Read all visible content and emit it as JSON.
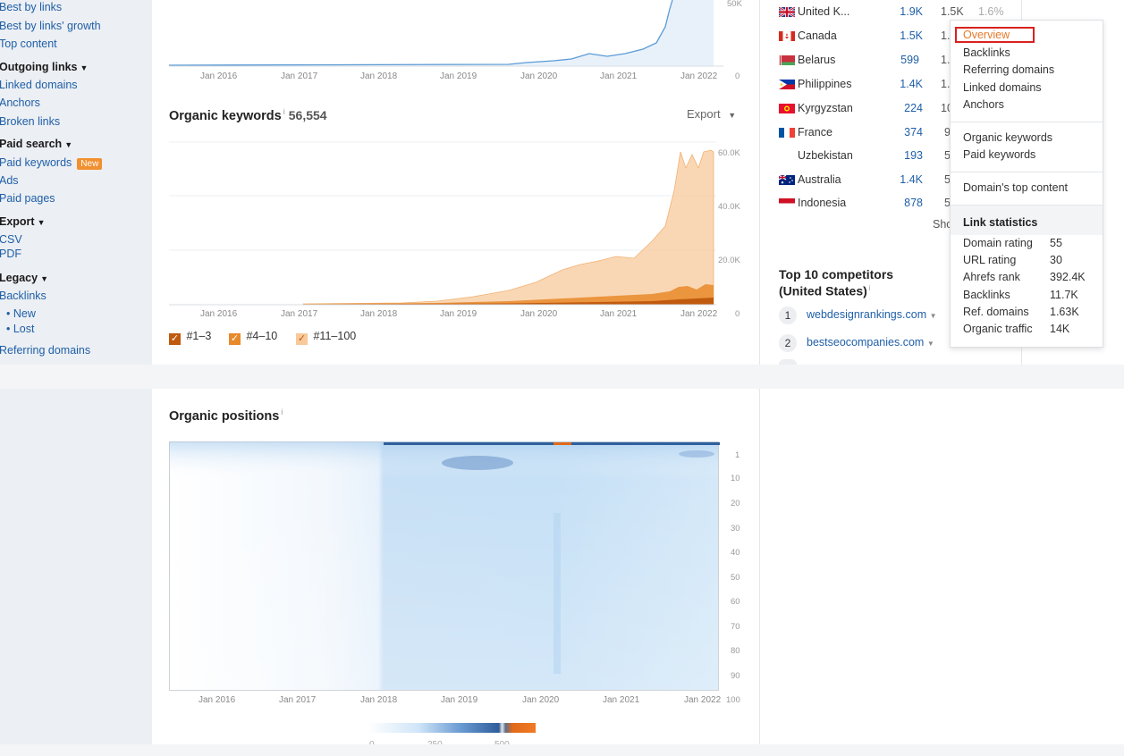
{
  "sidebar": {
    "top_links": [
      "Best by links",
      "Best by links' growth",
      "Top content"
    ],
    "outgoing_header": "Outgoing links",
    "outgoing_links": [
      "Linked domains",
      "Anchors",
      "Broken links"
    ],
    "paid_header": "Paid search",
    "paid_keywords": "Paid keywords",
    "new_badge": "New",
    "paid_links": [
      "Ads",
      "Paid pages"
    ],
    "export_header": "Export",
    "export_links": [
      "CSV",
      "PDF"
    ],
    "legacy_header": "Legacy",
    "legacy_backlinks": "Backlinks",
    "legacy_sub": [
      "• New",
      "• Lost"
    ],
    "legacy_ref": "Referring domains"
  },
  "top_chart": {
    "x_ticks": [
      "Jan 2016",
      "Jan 2017",
      "Jan 2018",
      "Jan 2019",
      "Jan 2020",
      "Jan 2021",
      "Jan 2022"
    ],
    "y_label_top": "50K",
    "y_label_zero": "0",
    "color": "#5b9bd5"
  },
  "organic_keywords": {
    "title": "Organic keywords",
    "count": "56,554",
    "export_label": "Export",
    "x_ticks": [
      "Jan 2016",
      "Jan 2017",
      "Jan 2018",
      "Jan 2019",
      "Jan 2020",
      "Jan 2021",
      "Jan 2022"
    ],
    "y_ticks": [
      "60.0K",
      "40.0K",
      "20.0K",
      "0"
    ],
    "legend": [
      "#1–3",
      "#4–10",
      "#11–100"
    ],
    "colors": {
      "top3": "#c05a0e",
      "top10": "#e8892a",
      "top100": "#f8c99b"
    }
  },
  "chart_data": [
    {
      "type": "area",
      "title": "Organic keywords",
      "x": [
        "Jan 2016",
        "Jan 2017",
        "Jan 2018",
        "Jan 2019",
        "Jan 2020",
        "Jan 2021",
        "Jan 2022"
      ],
      "series": [
        {
          "name": "#11–100",
          "values": [
            0,
            0,
            900,
            4000,
            11000,
            22000,
            57000
          ]
        },
        {
          "name": "#4–10",
          "values": [
            0,
            0,
            300,
            1200,
            2500,
            5000,
            8800
          ]
        },
        {
          "name": "#1–3",
          "values": [
            0,
            0,
            100,
            400,
            900,
            1800,
            3500
          ]
        }
      ],
      "ylim": [
        0,
        65000
      ]
    },
    {
      "type": "heatmap",
      "title": "Organic positions",
      "x": [
        "Jan 2016",
        "Jan 2017",
        "Jan 2018",
        "Jan 2019",
        "Jan 2020",
        "Jan 2021",
        "Jan 2022"
      ],
      "y": [
        "1",
        "10",
        "20",
        "30",
        "40",
        "50",
        "60",
        "70",
        "80",
        "90",
        "100"
      ],
      "scale": [
        "0",
        "250",
        "500"
      ]
    }
  ],
  "countries": {
    "rows": [
      {
        "name": "United K...",
        "a": "1.9K",
        "b": "1.5K",
        "c": "1.6%"
      },
      {
        "name": "Canada",
        "a": "1.5K",
        "b": "1."
      },
      {
        "name": "Belarus",
        "a": "599",
        "b": "1."
      },
      {
        "name": "Philippines",
        "a": "1.4K",
        "b": "1."
      },
      {
        "name": "Kyrgyzstan",
        "a": "224",
        "b": "10"
      },
      {
        "name": "France",
        "a": "374",
        "b": "9"
      },
      {
        "name": "Uzbekistan",
        "a": "193",
        "b": "5"
      },
      {
        "name": "Australia",
        "a": "1.4K",
        "b": "5"
      },
      {
        "name": "Indonesia",
        "a": "878",
        "b": "5"
      }
    ],
    "show_more": "Sho"
  },
  "competitors": {
    "title_line1": "Top 10 competitors",
    "title_line2": "(United States)",
    "items": [
      {
        "rank": "1",
        "domain": "webdesignrankings.com"
      },
      {
        "rank": "2",
        "domain": "bestseocompanies.com"
      }
    ]
  },
  "menu": {
    "items_group1": [
      "Overview",
      "Backlinks",
      "Referring domains",
      "Linked domains",
      "Anchors"
    ],
    "items_group2": [
      "Organic keywords",
      "Paid keywords"
    ],
    "items_group3": [
      "Domain's top content"
    ],
    "stats_header": "Link statistics",
    "stats": [
      {
        "label": "Domain rating",
        "value": "55"
      },
      {
        "label": "URL rating",
        "value": "30"
      },
      {
        "label": "Ahrefs rank",
        "value": "392.4K"
      },
      {
        "label": "Backlinks",
        "value": "11.7K"
      },
      {
        "label": "Ref. domains",
        "value": "1.63K"
      },
      {
        "label": "Organic traffic",
        "value": "14K"
      }
    ]
  },
  "organic_positions": {
    "title": "Organic positions",
    "y_ticks": [
      "1",
      "10",
      "20",
      "30",
      "40",
      "50",
      "60",
      "70",
      "80",
      "90",
      "100"
    ],
    "x_ticks": [
      "Jan 2016",
      "Jan 2017",
      "Jan 2018",
      "Jan 2019",
      "Jan 2020",
      "Jan 2021",
      "Jan 2022"
    ],
    "scale_labels": [
      "0",
      "250",
      "500"
    ]
  }
}
